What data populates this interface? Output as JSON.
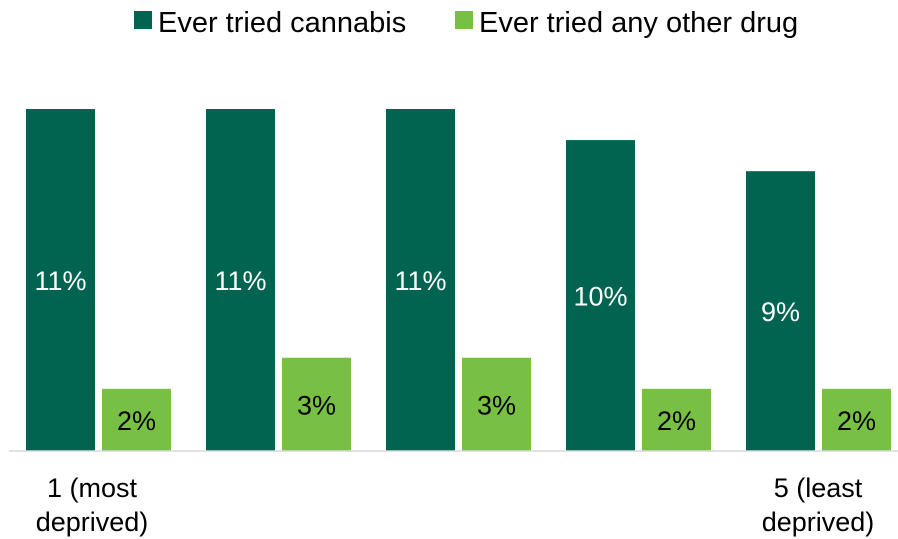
{
  "chart_data": {
    "type": "bar",
    "categories": [
      [
        "1 (most",
        "deprived)"
      ],
      [],
      [],
      [],
      [
        "5 (least",
        "deprived)"
      ]
    ],
    "series": [
      {
        "name": "Ever tried cannabis",
        "color": "#006450",
        "values": [
          11,
          11,
          11,
          10,
          9
        ],
        "labels": [
          "11%",
          "11%",
          "11%",
          "10%",
          "9%"
        ]
      },
      {
        "name": "Ever tried any other drug",
        "color": "#78C043",
        "values": [
          2,
          3,
          3,
          2,
          2
        ],
        "labels": [
          "2%",
          "3%",
          "3%",
          "2%",
          "2%"
        ]
      }
    ],
    "ylim": [
      0,
      11
    ],
    "grid": false,
    "legend": "top-center",
    "axis_color": "#d9d9d9"
  }
}
